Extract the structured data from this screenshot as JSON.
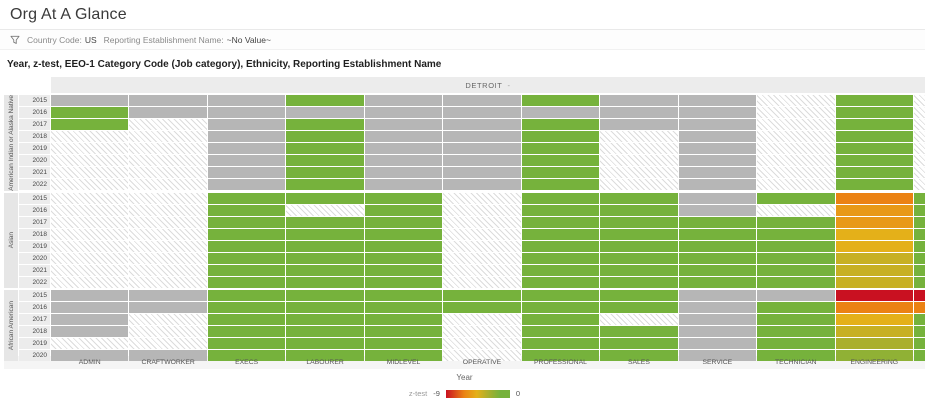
{
  "page": {
    "title": "Org At A Glance"
  },
  "filter_bar": {
    "filters": [
      {
        "label": "Country Code:",
        "value": "US"
      },
      {
        "label": "Reporting Establishment Name:",
        "value": "~No Value~"
      }
    ]
  },
  "chart": {
    "title": "Year, z-test, EEO-1 Category Code (Job category), Ethnicity, Reporting Establishment Name",
    "column_group_header": "DETROIT",
    "header_suffix": "-",
    "x_axis_label": "Year",
    "legend": {
      "label": "z-test",
      "min_label": "-9",
      "max_label": "0"
    }
  },
  "chart_data": {
    "type": "heatmap",
    "measure": "z-test",
    "establishment": "DETROIT",
    "scale": {
      "min": -9,
      "max": 0,
      "min_color": "#c91121",
      "max_color": "#76b23c"
    },
    "encoding": {
      "h": "hatched-empty-cell",
      "n": "gray-cell",
      "number": "z-test value colored on red-to-green scale"
    },
    "categories": [
      "ADMIN",
      "CRAFTWORKER",
      "EXECS",
      "LABOURER",
      "MIDLEVEL",
      "OPERATIVE",
      "PROFESSIONAL",
      "SALES",
      "SERVICE",
      "TECHNICIAN",
      "ENGINEERING"
    ],
    "groups": [
      {
        "ethnicity": "American Indian or Alaska Native",
        "years": [
          2015,
          2016,
          2017,
          2018,
          2019,
          2020,
          2021,
          2022
        ],
        "rows": [
          [
            "n",
            "n",
            "n",
            0,
            "n",
            "n",
            0,
            "n",
            "n",
            "h",
            0
          ],
          [
            0,
            "n",
            "n",
            "n",
            "n",
            "n",
            "n",
            "n",
            "n",
            "h",
            0
          ],
          [
            0,
            "h",
            "n",
            0,
            "n",
            "n",
            0,
            "n",
            "n",
            "h",
            0
          ],
          [
            "h",
            "h",
            "n",
            0,
            "n",
            "n",
            0,
            "h",
            "n",
            "h",
            0
          ],
          [
            "h",
            "h",
            "n",
            0,
            "n",
            "n",
            0,
            "h",
            "n",
            "h",
            0
          ],
          [
            "h",
            "h",
            "n",
            0,
            "n",
            "n",
            0,
            "h",
            "n",
            "h",
            0
          ],
          [
            "h",
            "h",
            "n",
            0,
            "n",
            "n",
            0,
            "h",
            "n",
            "h",
            0
          ],
          [
            "h",
            "h",
            "n",
            0,
            "n",
            "n",
            0,
            "h",
            "n",
            "h",
            0
          ]
        ],
        "overflow": [
          "h",
          "h",
          "h",
          "h",
          "h",
          "h",
          "h",
          "h"
        ]
      },
      {
        "ethnicity": "Asian",
        "years": [
          2015,
          2016,
          2017,
          2018,
          2019,
          2020,
          2021,
          2022
        ],
        "rows": [
          [
            "h",
            "h",
            0,
            0,
            0,
            "h",
            0,
            0,
            "n",
            0,
            -6
          ],
          [
            "h",
            "h",
            0,
            "h",
            0,
            "h",
            0,
            0,
            "n",
            "h",
            -5
          ],
          [
            "h",
            "h",
            0,
            0,
            0,
            "h",
            0,
            0,
            0,
            0,
            -5
          ],
          [
            "h",
            "h",
            0,
            0,
            0,
            "h",
            0,
            0,
            0,
            0,
            -4
          ],
          [
            "h",
            "h",
            0,
            0,
            0,
            "h",
            0,
            0,
            0,
            0,
            -4
          ],
          [
            "h",
            "h",
            0,
            0,
            0,
            "h",
            0,
            0,
            0,
            0,
            -3
          ],
          [
            "h",
            "h",
            0,
            0,
            0,
            "h",
            0,
            0,
            0,
            0,
            -3
          ],
          [
            "h",
            "h",
            0,
            0,
            0,
            "h",
            0,
            0,
            0,
            0,
            -3
          ]
        ],
        "overflow": [
          0,
          0,
          0,
          0,
          0,
          0,
          0,
          0
        ]
      },
      {
        "ethnicity": "African American",
        "years": [
          2015,
          2016,
          2017,
          2018,
          2019,
          2020
        ],
        "rows": [
          [
            "n",
            "n",
            0,
            0,
            0,
            0,
            0,
            0,
            "n",
            "n",
            -9
          ],
          [
            "n",
            "n",
            0,
            0,
            0,
            0,
            0,
            0,
            "n",
            0,
            -6
          ],
          [
            "n",
            "h",
            0,
            0,
            0,
            "h",
            0,
            "h",
            "n",
            0,
            -4
          ],
          [
            "n",
            "h",
            0,
            0,
            0,
            "h",
            0,
            0,
            "n",
            0,
            -3
          ],
          [
            "h",
            "h",
            0,
            0,
            0,
            "h",
            0,
            0,
            "n",
            0,
            -2
          ],
          [
            "n",
            "n",
            0,
            0,
            0,
            "h",
            0,
            0,
            "n",
            0,
            -1
          ]
        ],
        "overflow": [
          -9,
          -6,
          0,
          0,
          0,
          0
        ]
      }
    ]
  }
}
